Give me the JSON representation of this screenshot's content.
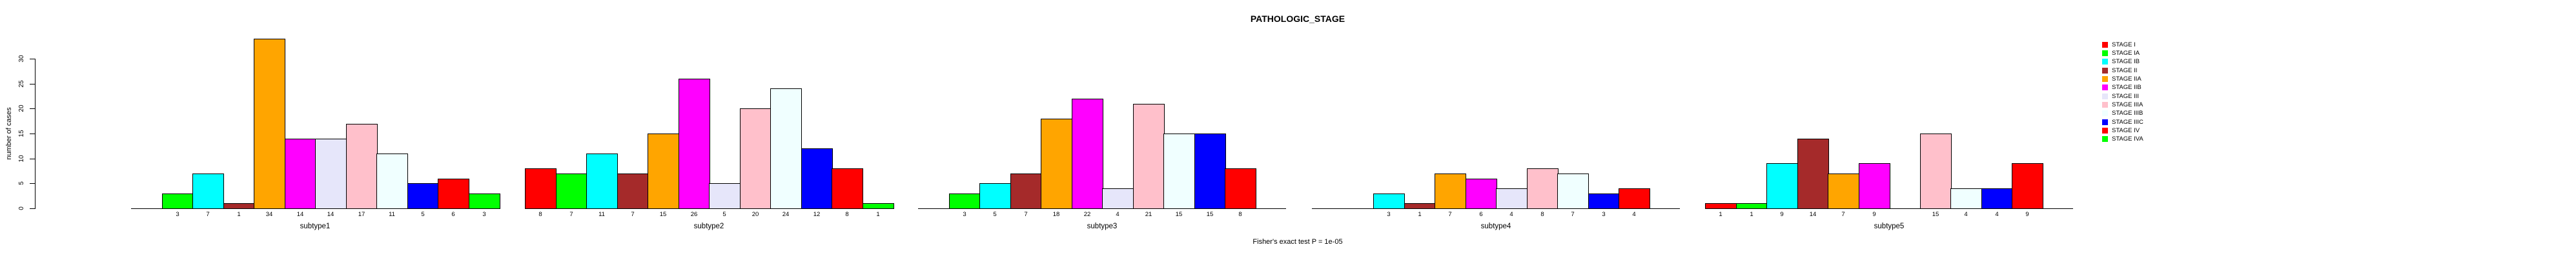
{
  "title": "PATHOLOGIC_STAGE",
  "footnote": "Fisher's exact test P = 1e-05",
  "y_axis": {
    "label": "number of cases",
    "ticks": [
      0,
      5,
      10,
      15,
      20,
      25,
      30
    ]
  },
  "legend": {
    "entries": [
      {
        "label": "STAGE I",
        "color": "#FF0000"
      },
      {
        "label": "STAGE IA",
        "color": "#00FF00"
      },
      {
        "label": "STAGE IB",
        "color": "#00FFFF"
      },
      {
        "label": "STAGE II",
        "color": "#A52A2A"
      },
      {
        "label": "STAGE IIA",
        "color": "#FFA500"
      },
      {
        "label": "STAGE IIB",
        "color": "#FF00FF"
      },
      {
        "label": "STAGE III",
        "color": "#E6E6FA"
      },
      {
        "label": "STAGE IIIA",
        "color": "#FFC0CB"
      },
      {
        "label": "STAGE IIIB",
        "color": "#F0FFFF"
      },
      {
        "label": "STAGE IIIC",
        "color": "#0000FF"
      },
      {
        "label": "STAGE IV",
        "color": "#FF0000"
      },
      {
        "label": "STAGE IVA",
        "color": "#00FF00"
      }
    ]
  },
  "chart_data": {
    "type": "bar",
    "title": "PATHOLOGIC_STAGE",
    "ylabel": "number of cases",
    "ylim": [
      0,
      30
    ],
    "grid": false,
    "legend_position": "top-right",
    "annotation": "Fisher's exact test P = 1e-05",
    "categories": [
      "STAGE I",
      "STAGE IA",
      "STAGE IB",
      "STAGE II",
      "STAGE IIA",
      "STAGE IIB",
      "STAGE III",
      "STAGE IIIA",
      "STAGE IIIB",
      "STAGE IIIC",
      "STAGE IV",
      "STAGE IVA"
    ],
    "category_colors": [
      "#FF0000",
      "#00FF00",
      "#00FFFF",
      "#A52A2A",
      "#FFA500",
      "#FF00FF",
      "#E6E6FA",
      "#FFC0CB",
      "#F0FFFF",
      "#0000FF",
      "#FF0000",
      "#00FF00"
    ],
    "series": [
      {
        "name": "subtype1",
        "values": [
          0,
          3,
          7,
          1,
          34,
          14,
          14,
          17,
          11,
          5,
          6,
          3
        ]
      },
      {
        "name": "subtype2",
        "values": [
          8,
          7,
          11,
          7,
          15,
          26,
          5,
          20,
          24,
          12,
          8,
          1
        ]
      },
      {
        "name": "subtype3",
        "values": [
          0,
          3,
          5,
          7,
          18,
          22,
          4,
          21,
          15,
          15,
          8,
          0
        ]
      },
      {
        "name": "subtype4",
        "values": [
          0,
          0,
          3,
          1,
          7,
          6,
          4,
          8,
          7,
          3,
          4,
          0
        ]
      },
      {
        "name": "subtype5",
        "values": [
          1,
          1,
          9,
          14,
          7,
          9,
          0,
          15,
          4,
          4,
          9,
          0
        ]
      }
    ]
  }
}
